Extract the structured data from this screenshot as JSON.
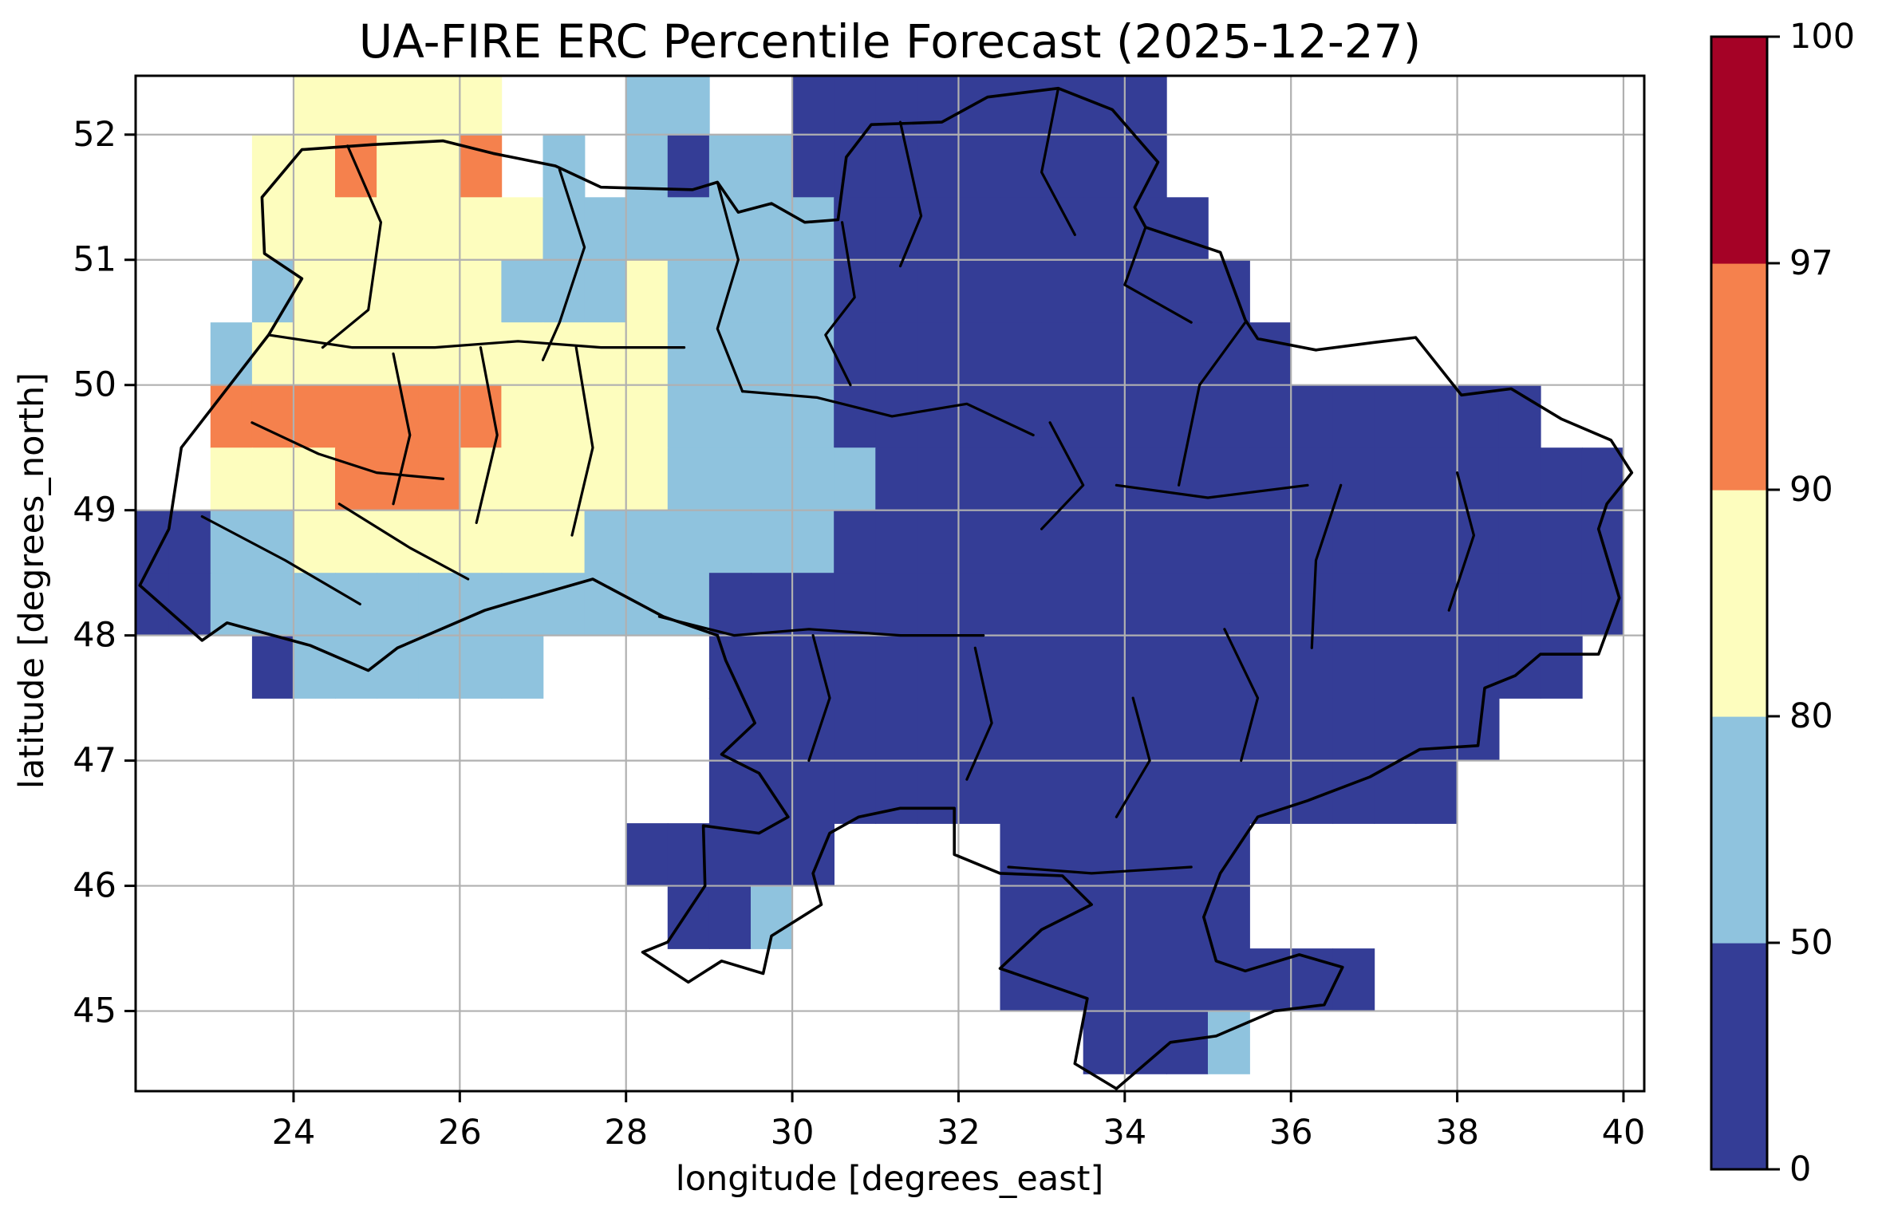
{
  "chart_data": {
    "type": "heatmap",
    "title": "UA-FIRE ERC Percentile Forecast (2025-12-27)",
    "xlabel": "longitude [degrees_east]",
    "ylabel": "latitude [degrees_north]",
    "x_ticks": [
      24,
      26,
      28,
      30,
      32,
      34,
      36,
      38,
      40
    ],
    "y_ticks": [
      45,
      46,
      47,
      48,
      49,
      50,
      51,
      52
    ],
    "xlim": [
      22.1,
      40.25
    ],
    "ylim": [
      44.36,
      52.47
    ],
    "grid_on": true,
    "style": {
      "grid_color": "#b0b0b0",
      "boundary_color": "#000000",
      "spine_color": "#000000",
      "no_data_color": "#ffffff"
    },
    "colorbar": {
      "tick_values": [
        0,
        50,
        80,
        90,
        97,
        100
      ],
      "segments": [
        {
          "range": [
            0,
            50
          ],
          "color": "#343d96"
        },
        {
          "range": [
            50,
            80
          ],
          "color": "#8fc3de"
        },
        {
          "range": [
            80,
            90
          ],
          "color": "#fdfdbe"
        },
        {
          "range": [
            90,
            97
          ],
          "color": "#f5814d"
        },
        {
          "range": [
            97,
            100
          ],
          "color": "#a50226"
        }
      ]
    },
    "raster": {
      "lon_origin": 22.0,
      "lat_origin": 52.5,
      "cell_deg": 0.5,
      "legend": {
        ".": "no-data",
        "b": "0-50",
        "l": "50-80",
        "y": "80-90",
        "o": "90-97",
        "r": "97-100"
      },
      "palette": {
        "b": "#343d96",
        "l": "#8fc3de",
        "y": "#fdfdbe",
        "o": "#f5814d",
        "r": "#a50226"
      },
      "rows": [
        "....yyyyy...ll..bbbbbbbbb...........",
        "...yyoyyo.l.lbllbbbbbbbbb...........",
        "...yyyyyyylllllllbbbbbbbbb..........",
        "...lyyyyylllyllllbbbbbbbbbb.........",
        "..lyyyyyyyyyyllllbbbbbbbbbbb........",
        "..oooooooyyyyllllbbbbbbbbbbbbbbbbb..",
        "..yyyoooyyyyylllllbbbbbbbbbbbbbbbbbb",
        "bbllyyyyyyyllllllbbbbbbbbbbbbbbbbbbb",
        "bbllllllllllllbbbbbbbbbbbbbbbbbbbbbb",
        "...bllllll....bbbbbbbbbbbbbbbbbbbbb.",
        "..............bbbbbbbbbbbbbbbbbbb...",
        "..............bbbbbbbbbbbbbbbbbb....",
        "............bbbbb....bbbbbb.........",
        ".............bbl.....bbbbbb.........",
        ".....................bbbbbbbbb......",
        ".......................bbbl........."
      ]
    },
    "boundaries": {
      "national": [
        [
          23.62,
          51.5
        ],
        [
          24.1,
          51.88
        ],
        [
          24.95,
          51.92
        ],
        [
          25.8,
          51.95
        ],
        [
          26.4,
          51.85
        ],
        [
          27.15,
          51.75
        ],
        [
          27.7,
          51.58
        ],
        [
          28.25,
          51.57
        ],
        [
          28.8,
          51.56
        ],
        [
          29.1,
          51.62
        ],
        [
          29.35,
          51.38
        ],
        [
          29.75,
          51.45
        ],
        [
          30.15,
          51.3
        ],
        [
          30.55,
          51.32
        ],
        [
          30.65,
          51.82
        ],
        [
          30.95,
          52.08
        ],
        [
          31.8,
          52.1
        ],
        [
          32.35,
          52.3
        ],
        [
          33.2,
          52.37
        ],
        [
          33.85,
          52.2
        ],
        [
          34.4,
          51.78
        ],
        [
          34.12,
          51.42
        ],
        [
          34.25,
          51.26
        ],
        [
          35.15,
          51.06
        ],
        [
          35.45,
          50.52
        ],
        [
          35.6,
          50.37
        ],
        [
          36.3,
          50.28
        ],
        [
          37.0,
          50.34
        ],
        [
          37.5,
          50.38
        ],
        [
          38.05,
          49.92
        ],
        [
          38.65,
          49.97
        ],
        [
          39.25,
          49.73
        ],
        [
          39.85,
          49.56
        ],
        [
          40.1,
          49.3
        ],
        [
          39.8,
          49.05
        ],
        [
          39.7,
          48.85
        ],
        [
          39.95,
          48.3
        ],
        [
          39.7,
          47.85
        ],
        [
          39.0,
          47.85
        ],
        [
          38.7,
          47.68
        ],
        [
          38.33,
          47.58
        ],
        [
          38.25,
          47.12
        ],
        [
          37.55,
          47.09
        ],
        [
          36.95,
          46.87
        ],
        [
          36.2,
          46.68
        ],
        [
          35.6,
          46.55
        ],
        [
          35.15,
          46.1
        ],
        [
          34.95,
          45.75
        ],
        [
          35.1,
          45.4
        ],
        [
          35.45,
          45.32
        ],
        [
          36.1,
          45.45
        ],
        [
          36.62,
          45.35
        ],
        [
          36.4,
          45.05
        ],
        [
          35.8,
          45.0
        ],
        [
          35.1,
          44.8
        ],
        [
          34.55,
          44.75
        ],
        [
          33.9,
          44.38
        ],
        [
          33.4,
          44.58
        ],
        [
          33.55,
          45.1
        ],
        [
          32.5,
          45.34
        ],
        [
          33.0,
          45.65
        ],
        [
          33.6,
          45.85
        ],
        [
          33.25,
          46.08
        ],
        [
          32.5,
          46.1
        ],
        [
          31.95,
          46.25
        ],
        [
          31.95,
          46.62
        ],
        [
          31.3,
          46.62
        ],
        [
          30.8,
          46.55
        ],
        [
          30.45,
          46.42
        ],
        [
          30.25,
          46.1
        ],
        [
          30.35,
          45.85
        ],
        [
          29.75,
          45.6
        ],
        [
          29.65,
          45.3
        ],
        [
          29.15,
          45.4
        ],
        [
          28.75,
          45.23
        ],
        [
          28.2,
          45.47
        ],
        [
          28.5,
          45.55
        ],
        [
          28.95,
          46.0
        ],
        [
          28.93,
          46.48
        ],
        [
          29.6,
          46.42
        ],
        [
          29.95,
          46.55
        ],
        [
          29.6,
          46.9
        ],
        [
          29.15,
          47.05
        ],
        [
          29.55,
          47.3
        ],
        [
          29.2,
          47.8
        ],
        [
          29.1,
          48.0
        ],
        [
          28.45,
          48.15
        ],
        [
          27.6,
          48.45
        ],
        [
          26.65,
          48.27
        ],
        [
          26.3,
          48.2
        ],
        [
          25.25,
          47.9
        ],
        [
          24.9,
          47.72
        ],
        [
          24.2,
          47.92
        ],
        [
          23.2,
          48.1
        ],
        [
          22.9,
          47.96
        ],
        [
          22.15,
          48.4
        ],
        [
          22.5,
          48.85
        ],
        [
          22.65,
          49.5
        ],
        [
          23.0,
          49.8
        ],
        [
          23.7,
          50.4
        ],
        [
          24.1,
          50.85
        ],
        [
          23.65,
          51.05
        ],
        [
          23.62,
          51.5
        ]
      ],
      "internal": [
        [
          [
            24.65,
            51.91
          ],
          [
            25.05,
            51.3
          ],
          [
            24.9,
            50.6
          ],
          [
            24.35,
            50.3
          ]
        ],
        [
          [
            27.2,
            51.72
          ],
          [
            27.5,
            51.1
          ],
          [
            27.2,
            50.5
          ],
          [
            27.0,
            50.2
          ]
        ],
        [
          [
            29.1,
            51.62
          ],
          [
            29.35,
            51.0
          ],
          [
            29.1,
            50.45
          ],
          [
            29.4,
            49.95
          ]
        ],
        [
          [
            30.6,
            51.3
          ],
          [
            30.75,
            50.7
          ],
          [
            30.4,
            50.4
          ],
          [
            30.7,
            50.0
          ]
        ],
        [
          [
            31.3,
            52.1
          ],
          [
            31.55,
            51.35
          ],
          [
            31.3,
            50.95
          ]
        ],
        [
          [
            33.2,
            52.37
          ],
          [
            33.0,
            51.7
          ],
          [
            33.4,
            51.2
          ]
        ],
        [
          [
            34.25,
            51.26
          ],
          [
            34.0,
            50.8
          ],
          [
            34.8,
            50.5
          ]
        ],
        [
          [
            35.45,
            50.5
          ],
          [
            34.9,
            50.0
          ],
          [
            34.65,
            49.2
          ]
        ],
        [
          [
            33.1,
            49.7
          ],
          [
            33.5,
            49.2
          ],
          [
            33.0,
            48.85
          ]
        ],
        [
          [
            36.6,
            49.2
          ],
          [
            36.3,
            48.6
          ],
          [
            36.25,
            47.9
          ]
        ],
        [
          [
            38.0,
            49.3
          ],
          [
            38.2,
            48.8
          ],
          [
            37.9,
            48.2
          ]
        ],
        [
          [
            29.4,
            49.95
          ],
          [
            30.3,
            49.9
          ],
          [
            31.2,
            49.75
          ],
          [
            32.1,
            49.85
          ],
          [
            32.9,
            49.6
          ]
        ],
        [
          [
            33.9,
            49.2
          ],
          [
            35.0,
            49.1
          ],
          [
            36.2,
            49.2
          ]
        ],
        [
          [
            28.4,
            48.15
          ],
          [
            29.3,
            48.0
          ],
          [
            30.2,
            48.05
          ],
          [
            31.3,
            48.0
          ],
          [
            32.3,
            48.0
          ]
        ],
        [
          [
            32.2,
            47.9
          ],
          [
            32.4,
            47.3
          ],
          [
            32.1,
            46.85
          ]
        ],
        [
          [
            34.1,
            47.5
          ],
          [
            34.3,
            47.0
          ],
          [
            33.9,
            46.55
          ]
        ],
        [
          [
            35.2,
            48.05
          ],
          [
            35.6,
            47.5
          ],
          [
            35.4,
            47.0
          ]
        ],
        [
          [
            25.2,
            50.25
          ],
          [
            25.4,
            49.6
          ],
          [
            25.2,
            49.05
          ]
        ],
        [
          [
            26.25,
            50.3
          ],
          [
            26.45,
            49.6
          ],
          [
            26.2,
            48.9
          ]
        ],
        [
          [
            27.4,
            50.3
          ],
          [
            27.6,
            49.5
          ],
          [
            27.35,
            48.8
          ]
        ],
        [
          [
            22.9,
            48.95
          ],
          [
            23.9,
            48.6
          ],
          [
            24.8,
            48.25
          ]
        ],
        [
          [
            24.55,
            49.05
          ],
          [
            25.4,
            48.7
          ],
          [
            26.1,
            48.45
          ]
        ],
        [
          [
            23.7,
            50.4
          ],
          [
            24.7,
            50.3
          ],
          [
            25.7,
            50.3
          ],
          [
            26.7,
            50.35
          ],
          [
            27.7,
            50.3
          ],
          [
            28.7,
            50.3
          ]
        ],
        [
          [
            23.5,
            49.7
          ],
          [
            24.3,
            49.45
          ],
          [
            25.0,
            49.3
          ],
          [
            25.8,
            49.25
          ]
        ],
        [
          [
            30.25,
            48.0
          ],
          [
            30.45,
            47.5
          ],
          [
            30.2,
            47.0
          ]
        ],
        [
          [
            32.6,
            46.15
          ],
          [
            33.6,
            46.1
          ],
          [
            34.8,
            46.15
          ]
        ]
      ]
    }
  }
}
